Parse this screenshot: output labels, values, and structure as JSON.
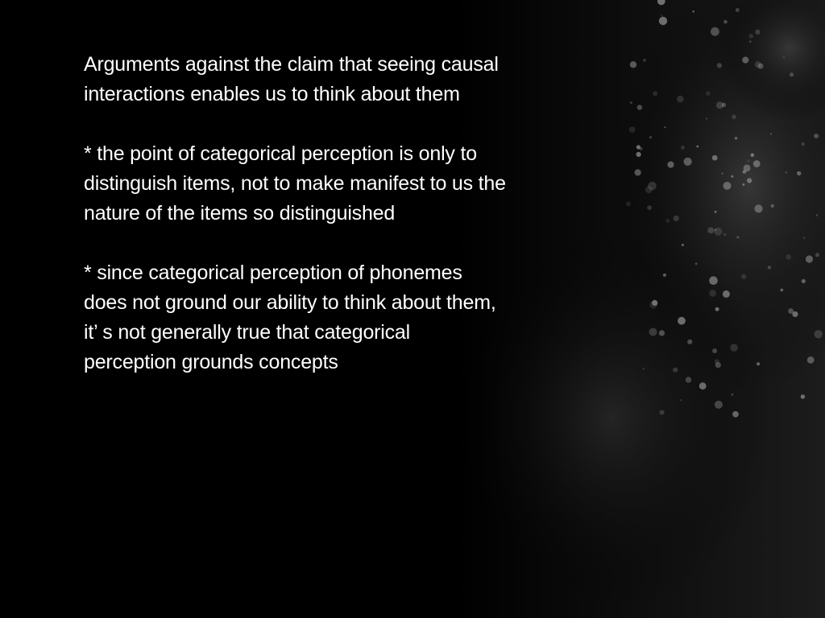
{
  "slide": {
    "heading": [
      "Arguments against the claim that seeing causal",
      "interactions enables us to think about them"
    ],
    "bullets": [
      {
        "lines": [
          "* the point of categorical perception is only to",
          "distinguish items, not to make manifest to us the",
          "nature of the items so distinguished"
        ]
      },
      {
        "lines": [
          "* since categorical perception of phonemes",
          "does not ground our ability to think about them,",
          "it’ s not generally true that categorical",
          "perception grounds concepts"
        ]
      }
    ]
  },
  "theme": {
    "background": "#000000",
    "text_color": "#ffffff",
    "bokeh_color": "#9a9a9a"
  }
}
